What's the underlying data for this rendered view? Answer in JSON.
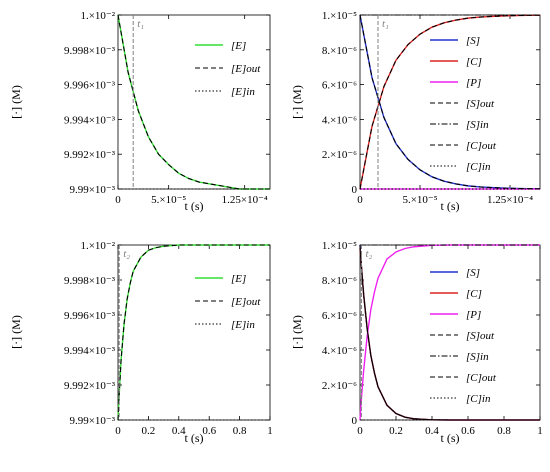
{
  "chart_data": [
    {
      "type": "line",
      "xlabel": "t (s)",
      "ylabel": "[·] (M)",
      "xlim": [
        0,
        0.00015
      ],
      "ylim": [
        0.00999,
        0.01
      ],
      "xticks": [
        {
          "v": 0,
          "label": "0"
        },
        {
          "v": 5e-05,
          "label": "5.×10⁻⁵"
        },
        {
          "v": 0.000125,
          "label": "1.25×10⁻⁴"
        }
      ],
      "yticks": [
        {
          "v": 0.00999,
          "label": "9.99×10⁻³"
        },
        {
          "v": 0.009992,
          "label": "9.992×10⁻³"
        },
        {
          "v": 0.009994,
          "label": "9.994×10⁻³"
        },
        {
          "v": 0.009996,
          "label": "9.996×10⁻³"
        },
        {
          "v": 0.009998,
          "label": "9.998×10⁻³"
        },
        {
          "v": 0.01,
          "label": "1.×10⁻²"
        }
      ],
      "marker": {
        "x": 1.5e-05,
        "label": "t₁"
      },
      "legend": [
        "[E]",
        "[E]out",
        "[E]in"
      ],
      "series": [
        {
          "name": "[E]",
          "color": "#33dd33",
          "dash": "solid",
          "x": [
            0,
            1e-05,
            2e-05,
            3e-05,
            4e-05,
            5e-05,
            6e-05,
            7e-05,
            8e-05,
            9e-05,
            0.0001,
            0.00011,
            0.00012,
            0.00013,
            0.00014,
            0.00015
          ],
          "y": [
            0.01,
            0.0099967,
            0.0099945,
            0.009993,
            0.009992,
            0.0099914,
            0.0099909,
            0.0099906,
            0.0099904,
            0.0099903,
            0.0099902,
            0.0099901,
            0.00999,
            0.00999,
            0.00999,
            0.00999
          ]
        },
        {
          "name": "[E]out",
          "color": "#000000",
          "dash": "dashed",
          "x": [
            0,
            1e-05,
            2e-05,
            3e-05,
            4e-05,
            5e-05,
            6e-05,
            7e-05,
            8e-05,
            9e-05,
            0.0001,
            0.00011,
            0.00012,
            0.00013,
            0.00014,
            0.00015
          ],
          "y": [
            0.01,
            0.0099967,
            0.0099945,
            0.009993,
            0.009992,
            0.0099914,
            0.0099909,
            0.0099906,
            0.0099904,
            0.0099903,
            0.0099902,
            0.0099901,
            0.00999,
            0.00999,
            0.00999,
            0.00999
          ]
        },
        {
          "name": "[E]in",
          "color": "#000000",
          "dash": "dotted",
          "x": [
            0,
            0.00015
          ],
          "y": [
            0.00999,
            0.00999
          ]
        }
      ]
    },
    {
      "type": "line",
      "xlabel": "t (s)",
      "ylabel": "[·] (M)",
      "xlim": [
        0,
        0.00015
      ],
      "ylim": [
        0,
        1e-05
      ],
      "xticks": [
        {
          "v": 0,
          "label": "0"
        },
        {
          "v": 5e-05,
          "label": "5.×10⁻⁵"
        },
        {
          "v": 0.000125,
          "label": "1.25×10⁻⁴"
        }
      ],
      "yticks": [
        {
          "v": 0,
          "label": "0"
        },
        {
          "v": 2e-06,
          "label": "2.×10⁻⁶"
        },
        {
          "v": 4e-06,
          "label": "4.×10⁻⁶"
        },
        {
          "v": 6e-06,
          "label": "6.×10⁻⁶"
        },
        {
          "v": 8e-06,
          "label": "8.×10⁻⁶"
        },
        {
          "v": 1e-05,
          "label": "1.×10⁻⁵"
        }
      ],
      "marker": {
        "x": 1.5e-05,
        "label": "t₁"
      },
      "legend": [
        "[S]",
        "[C]",
        "[P]",
        "[S]out",
        "[S]in",
        "[C]out",
        "[C]in"
      ],
      "series": [
        {
          "name": "[S]",
          "color": "#2233cc",
          "dash": "solid",
          "x": [
            0,
            1e-05,
            2e-05,
            3e-05,
            4e-05,
            5e-05,
            6e-05,
            7e-05,
            8e-05,
            9e-05,
            0.0001,
            0.00011,
            0.00012,
            0.00013,
            0.00014,
            0.00015
          ],
          "y": [
            1e-05,
            6.4e-06,
            4.1e-06,
            2.6e-06,
            1.7e-06,
            1.1e-06,
            7e-07,
            4.5e-07,
            2.9e-07,
            1.8e-07,
            1.2e-07,
            8e-08,
            5e-08,
            3e-08,
            2e-08,
            1e-08
          ]
        },
        {
          "name": "[C]",
          "color": "#dd2222",
          "dash": "solid",
          "x": [
            0,
            1e-05,
            2e-05,
            3e-05,
            4e-05,
            5e-05,
            6e-05,
            7e-05,
            8e-05,
            9e-05,
            0.0001,
            0.00011,
            0.00012,
            0.00013,
            0.00014,
            0.00015
          ],
          "y": [
            0,
            3.6e-06,
            5.9e-06,
            7.4e-06,
            8.3e-06,
            8.9e-06,
            9.3e-06,
            9.55e-06,
            9.71e-06,
            9.82e-06,
            9.88e-06,
            9.92e-06,
            9.95e-06,
            9.97e-06,
            9.98e-06,
            9.99e-06
          ]
        },
        {
          "name": "[P]",
          "color": "#ee22ee",
          "dash": "solid",
          "x": [
            0,
            0.00015
          ],
          "y": [
            0,
            0
          ]
        },
        {
          "name": "[S]out",
          "color": "#000000",
          "dash": "dashed",
          "x": [
            0,
            1e-05,
            2e-05,
            3e-05,
            4e-05,
            5e-05,
            6e-05,
            7e-05,
            8e-05,
            9e-05,
            0.0001,
            0.00011,
            0.00012,
            0.00013,
            0.00014,
            0.00015
          ],
          "y": [
            1e-05,
            6.4e-06,
            4.1e-06,
            2.6e-06,
            1.7e-06,
            1.1e-06,
            7e-07,
            4.5e-07,
            2.9e-07,
            1.8e-07,
            1.2e-07,
            8e-08,
            5e-08,
            3e-08,
            2e-08,
            1e-08
          ]
        },
        {
          "name": "[S]in",
          "color": "#000000",
          "dash": "dashdot",
          "x": [
            0,
            0.00015
          ],
          "y": [
            1e-05,
            1e-05
          ]
        },
        {
          "name": "[C]out",
          "color": "#000000",
          "dash": "dashed",
          "x": [
            0,
            1e-05,
            2e-05,
            3e-05,
            4e-05,
            5e-05,
            6e-05,
            7e-05,
            8e-05,
            9e-05,
            0.0001,
            0.00011,
            0.00012,
            0.00013,
            0.00014,
            0.00015
          ],
          "y": [
            0,
            3.6e-06,
            5.9e-06,
            7.4e-06,
            8.3e-06,
            8.9e-06,
            9.3e-06,
            9.55e-06,
            9.71e-06,
            9.82e-06,
            9.88e-06,
            9.92e-06,
            9.95e-06,
            9.97e-06,
            9.98e-06,
            9.99e-06
          ]
        },
        {
          "name": "[C]in",
          "color": "#000000",
          "dash": "dotted",
          "x": [
            0,
            0.00015
          ],
          "y": [
            0,
            0
          ]
        }
      ]
    },
    {
      "type": "line",
      "xlabel": "t (s)",
      "ylabel": "[·] (M)",
      "xlim": [
        0,
        1
      ],
      "ylim": [
        0.00999,
        0.01
      ],
      "xticks": [
        {
          "v": 0,
          "label": "0"
        },
        {
          "v": 0.2,
          "label": "0.2"
        },
        {
          "v": 0.4,
          "label": "0.4"
        },
        {
          "v": 0.6,
          "label": "0.6"
        },
        {
          "v": 0.8,
          "label": "0.8"
        },
        {
          "v": 1,
          "label": "1"
        }
      ],
      "yticks": [
        {
          "v": 0.00999,
          "label": "9.99×10⁻³"
        },
        {
          "v": 0.009992,
          "label": "9.992×10⁻³"
        },
        {
          "v": 0.009994,
          "label": "9.994×10⁻³"
        },
        {
          "v": 0.009996,
          "label": "9.996×10⁻³"
        },
        {
          "v": 0.009998,
          "label": "9.998×10⁻³"
        },
        {
          "v": 0.01,
          "label": "1.×10⁻²"
        }
      ],
      "marker": {
        "x": 0.008,
        "label": "t₂"
      },
      "legend": [
        "[E]",
        "[E]out",
        "[E]in"
      ],
      "series": [
        {
          "name": "[E]",
          "color": "#33dd33",
          "dash": "solid",
          "x": [
            0,
            0.005,
            0.01,
            0.02,
            0.04,
            0.06,
            0.08,
            0.1,
            0.15,
            0.2,
            0.25,
            0.3,
            0.4,
            0.5,
            0.6,
            0.8,
            1
          ],
          "y": [
            0.00999,
            0.009991,
            0.0099918,
            0.0099934,
            0.0099955,
            0.0099969,
            0.0099978,
            0.0099985,
            0.0099993,
            0.0099997,
            0.00999985,
            0.00999993,
            0.01,
            0.01,
            0.01,
            0.01,
            0.01
          ]
        },
        {
          "name": "[E]out",
          "color": "#000000",
          "dash": "dashed",
          "x": [
            0,
            0.005,
            0.01,
            0.02,
            0.04,
            0.06,
            0.08,
            0.1,
            0.15,
            0.2,
            0.25,
            0.3,
            0.4,
            0.5,
            0.6,
            0.8,
            1
          ],
          "y": [
            0.00999,
            0.009991,
            0.0099918,
            0.0099934,
            0.0099955,
            0.0099969,
            0.0099978,
            0.0099985,
            0.0099993,
            0.0099997,
            0.00999985,
            0.00999993,
            0.01,
            0.01,
            0.01,
            0.01,
            0.01
          ]
        },
        {
          "name": "[E]in",
          "color": "#000000",
          "dash": "dotted",
          "x": [
            0,
            1
          ],
          "y": [
            0.00999,
            0.00999
          ]
        }
      ]
    },
    {
      "type": "line",
      "xlabel": "t (s)",
      "ylabel": "[·] (M)",
      "xlim": [
        0,
        1
      ],
      "ylim": [
        0,
        1e-05
      ],
      "xticks": [
        {
          "v": 0,
          "label": "0"
        },
        {
          "v": 0.2,
          "label": "0.2"
        },
        {
          "v": 0.4,
          "label": "0.4"
        },
        {
          "v": 0.6,
          "label": "0.6"
        },
        {
          "v": 0.8,
          "label": "0.8"
        },
        {
          "v": 1,
          "label": "1"
        }
      ],
      "yticks": [
        {
          "v": 0,
          "label": "0"
        },
        {
          "v": 2e-06,
          "label": "2.×10⁻⁶"
        },
        {
          "v": 4e-06,
          "label": "4.×10⁻⁶"
        },
        {
          "v": 6e-06,
          "label": "6.×10⁻⁶"
        },
        {
          "v": 8e-06,
          "label": "8.×10⁻⁶"
        },
        {
          "v": 1e-05,
          "label": "1.×10⁻⁵"
        }
      ],
      "marker": {
        "x": 0.008,
        "label": "t₂"
      },
      "legend": [
        "[S]",
        "[C]",
        "[P]",
        "[S]out",
        "[S]in",
        "[C]out",
        "[C]in"
      ],
      "series": [
        {
          "name": "[S]",
          "color": "#2233cc",
          "dash": "solid",
          "x": [
            0,
            0.005,
            0.01,
            0.02,
            0.04,
            0.06,
            0.08,
            0.1,
            0.15,
            0.2,
            0.25,
            0.3,
            0.4,
            0.5,
            0.6,
            0.8,
            1
          ],
          "y": [
            1e-05,
            9.2e-06,
            8.5e-06,
            7.2e-06,
            5.2e-06,
            3.7e-06,
            2.7e-06,
            1.9e-06,
            8.4e-07,
            3.7e-07,
            1.6e-07,
            7e-08,
            1e-08,
            0,
            0,
            0,
            0
          ]
        },
        {
          "name": "[C]",
          "color": "#dd2222",
          "dash": "solid",
          "x": [
            0,
            0.005,
            0.01,
            0.02,
            0.04,
            0.06,
            0.08,
            0.1,
            0.15,
            0.2,
            0.25,
            0.3,
            0.4,
            0.5,
            0.6,
            0.8,
            1
          ],
          "y": [
            9.8e-06,
            9.2e-06,
            8.5e-06,
            7.2e-06,
            5.2e-06,
            3.7e-06,
            2.7e-06,
            1.9e-06,
            8.4e-07,
            3.7e-07,
            1.6e-07,
            7e-08,
            1e-08,
            0,
            0,
            0,
            0
          ]
        },
        {
          "name": "[P]",
          "color": "#ee22ee",
          "dash": "solid",
          "x": [
            0,
            0.005,
            0.01,
            0.02,
            0.04,
            0.06,
            0.08,
            0.1,
            0.15,
            0.2,
            0.25,
            0.3,
            0.4,
            0.5,
            0.6,
            0.8,
            1
          ],
          "y": [
            0,
            8e-07,
            1.5e-06,
            2.8e-06,
            4.8e-06,
            6.3e-06,
            7.3e-06,
            8.1e-06,
            9.2e-06,
            9.6e-06,
            9.8e-06,
            9.9e-06,
            9.98e-06,
            1e-05,
            1e-05,
            1e-05,
            1e-05
          ]
        },
        {
          "name": "[S]out",
          "color": "#000000",
          "dash": "dashed",
          "x": [
            0,
            0.005,
            0.01,
            0.02,
            0.04,
            0.06,
            0.08,
            0.1,
            0.15,
            0.2,
            0.25,
            0.3,
            0.4,
            0.5,
            0.6,
            0.8,
            1
          ],
          "y": [
            1e-05,
            9.2e-06,
            8.5e-06,
            7.2e-06,
            5.2e-06,
            3.7e-06,
            2.7e-06,
            1.9e-06,
            8.4e-07,
            3.7e-07,
            1.6e-07,
            7e-08,
            1e-08,
            0,
            0,
            0,
            0
          ]
        },
        {
          "name": "[S]in",
          "color": "#000000",
          "dash": "dashdot",
          "x": [
            0,
            1
          ],
          "y": [
            1e-05,
            1e-05
          ]
        },
        {
          "name": "[C]out",
          "color": "#000000",
          "dash": "dashed",
          "x": [
            0,
            0.005,
            0.01,
            0.02,
            0.04,
            0.06,
            0.08,
            0.1,
            0.15,
            0.2,
            0.25,
            0.3,
            0.4,
            0.5,
            0.6,
            0.8,
            1
          ],
          "y": [
            9.8e-06,
            9.2e-06,
            8.5e-06,
            7.2e-06,
            5.2e-06,
            3.7e-06,
            2.7e-06,
            1.9e-06,
            8.4e-07,
            3.7e-07,
            1.6e-07,
            7e-08,
            1e-08,
            0,
            0,
            0,
            0
          ]
        },
        {
          "name": "[C]in",
          "color": "#000000",
          "dash": "dotted",
          "x": [
            0,
            1
          ],
          "y": [
            0,
            0
          ]
        }
      ]
    }
  ]
}
